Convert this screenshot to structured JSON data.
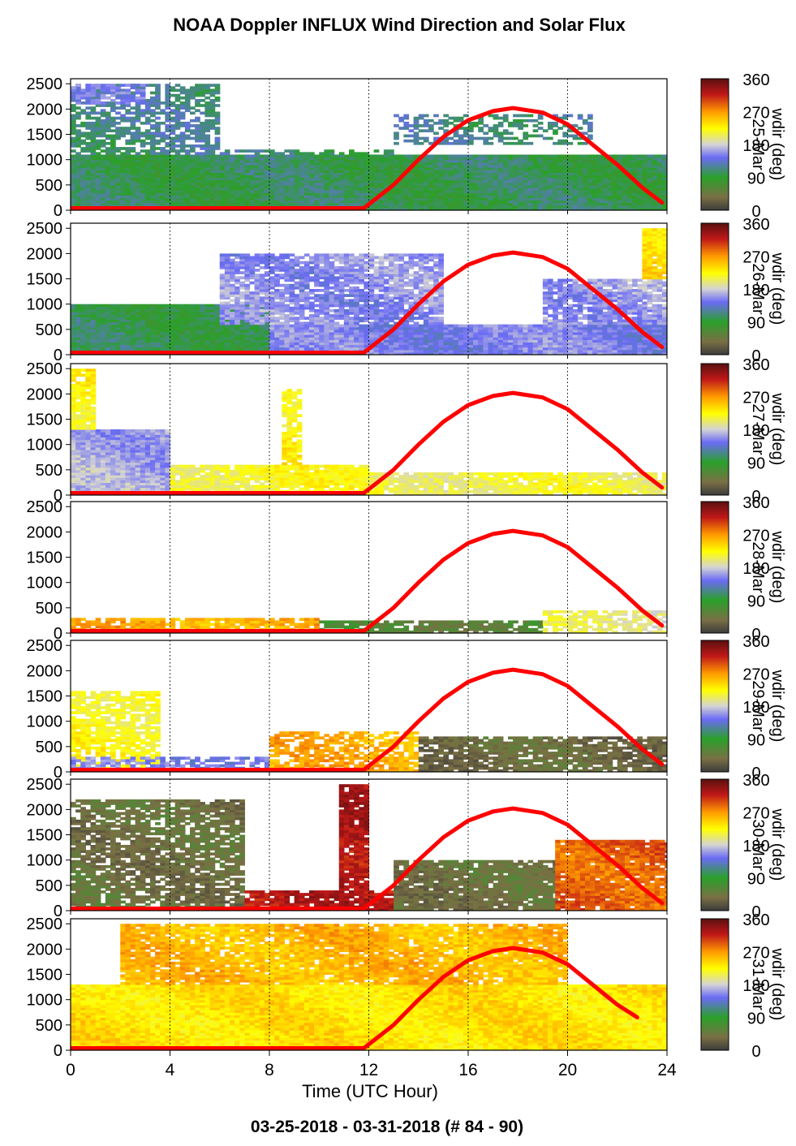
{
  "title": "NOAA Doppler INFLUX Wind Direction and Solar Flux",
  "footer": "03-25-2018 - 03-31-2018   (# 84 - 90)",
  "colors": {
    "solar_curve": "#ff0000",
    "colormap_stops": [
      "#3c3c3c",
      "#7a6f44",
      "#2aa02a",
      "#6b6bf5",
      "#d4d4d4",
      "#ffff00",
      "#ff9900",
      "#c01818",
      "#5a1010"
    ],
    "colormap_positions": [
      0,
      0.1,
      0.25,
      0.4,
      0.5,
      0.62,
      0.75,
      0.88,
      1.0
    ]
  },
  "chart_data": {
    "type": "heatmap",
    "xlabel": "Time (UTC Hour)",
    "x_ticks": [
      "0",
      "4",
      "8",
      "12",
      "16",
      "20",
      "24"
    ],
    "xlim": [
      0,
      24
    ],
    "y_ticks": [
      "0",
      "500",
      "1000",
      "1500",
      "2000",
      "2500"
    ],
    "ylim": [
      0,
      2600
    ],
    "grid": "vertical dotted lines at 4, 8, 12, 16, 20, 24",
    "colorbar": {
      "label": "wdir (deg)",
      "ticks": [
        "0",
        "90",
        "180",
        "270",
        "360"
      ],
      "range": [
        0,
        360
      ]
    },
    "solar_flux_curve": {
      "x": [
        0,
        11.8,
        13,
        14,
        15,
        16,
        17,
        17.8,
        19,
        20,
        21,
        22,
        23,
        23.8
      ],
      "y": [
        40,
        40,
        500,
        1000,
        1450,
        1780,
        1960,
        2020,
        1930,
        1700,
        1300,
        900,
        450,
        150
      ]
    },
    "panels": [
      {
        "date_label": "25-Mar",
        "regions": [
          {
            "x": [
              0,
              24
            ],
            "z": [
              0,
              1100
            ],
            "wdir": 100,
            "coverage": 1.0
          },
          {
            "x": [
              0,
              6
            ],
            "z": [
              1100,
              2500
            ],
            "wdir": 115,
            "coverage": 0.65
          },
          {
            "x": [
              6,
              13
            ],
            "z": [
              1000,
              1200
            ],
            "wdir": 110,
            "coverage": 0.55
          },
          {
            "x": [
              13,
              21
            ],
            "z": [
              1300,
              1900
            ],
            "wdir": 115,
            "coverage": 0.5
          },
          {
            "x": [
              0,
              3
            ],
            "z": [
              2100,
              2500
            ],
            "wdir": 140,
            "coverage": 0.7
          }
        ],
        "solar_end_y": 150
      },
      {
        "date_label": "26-Mar",
        "regions": [
          {
            "x": [
              0,
              8
            ],
            "z": [
              0,
              1000
            ],
            "wdir": 100,
            "coverage": 1.0
          },
          {
            "x": [
              8,
              24
            ],
            "z": [
              0,
              600
            ],
            "wdir": 150,
            "coverage": 1.0
          },
          {
            "x": [
              6,
              15
            ],
            "z": [
              600,
              2000
            ],
            "wdir": 155,
            "coverage": 0.85
          },
          {
            "x": [
              19,
              24
            ],
            "z": [
              600,
              1500
            ],
            "wdir": 160,
            "coverage": 0.85
          },
          {
            "x": [
              23,
              24
            ],
            "z": [
              1500,
              2500
            ],
            "wdir": 240,
            "coverage": 0.9
          }
        ],
        "solar_end_y": 150
      },
      {
        "date_label": "27-Mar",
        "regions": [
          {
            "x": [
              0,
              4
            ],
            "z": [
              0,
              1300
            ],
            "wdir": 165,
            "coverage": 1.0
          },
          {
            "x": [
              0,
              1
            ],
            "z": [
              1300,
              2500
            ],
            "wdir": 225,
            "coverage": 0.9
          },
          {
            "x": [
              4,
              12
            ],
            "z": [
              0,
              600
            ],
            "wdir": 215,
            "coverage": 0.9
          },
          {
            "x": [
              12,
              24
            ],
            "z": [
              0,
              450
            ],
            "wdir": 210,
            "coverage": 0.9
          },
          {
            "x": [
              8.5,
              9.2
            ],
            "z": [
              600,
              2100
            ],
            "wdir": 225,
            "coverage": 0.8
          }
        ],
        "solar_end_y": 150
      },
      {
        "date_label": "28-Mar",
        "regions": [
          {
            "x": [
              0,
              10
            ],
            "z": [
              0,
              300
            ],
            "wdir": 260,
            "coverage": 0.8
          },
          {
            "x": [
              10,
              19
            ],
            "z": [
              0,
              250
            ],
            "wdir": 60,
            "coverage": 0.8
          },
          {
            "x": [
              19,
              24
            ],
            "z": [
              0,
              450
            ],
            "wdir": 200,
            "coverage": 0.7
          }
        ],
        "solar_end_y": 150
      },
      {
        "date_label": "29-Mar",
        "regions": [
          {
            "x": [
              0,
              3.5
            ],
            "z": [
              0,
              1600
            ],
            "wdir": 220,
            "coverage": 0.75
          },
          {
            "x": [
              0,
              8
            ],
            "z": [
              0,
              300
            ],
            "wdir": 150,
            "coverage": 0.6
          },
          {
            "x": [
              8,
              14
            ],
            "z": [
              0,
              800
            ],
            "wdir": 260,
            "coverage": 0.7
          },
          {
            "x": [
              14,
              24
            ],
            "z": [
              0,
              700
            ],
            "wdir": 35,
            "coverage": 0.85
          }
        ],
        "solar_end_y": 150
      },
      {
        "date_label": "30-Mar",
        "regions": [
          {
            "x": [
              0,
              7
            ],
            "z": [
              0,
              2200
            ],
            "wdir": 40,
            "coverage": 0.8
          },
          {
            "x": [
              7,
              13
            ],
            "z": [
              0,
              400
            ],
            "wdir": 320,
            "coverage": 0.9
          },
          {
            "x": [
              10.8,
              12
            ],
            "z": [
              400,
              2500
            ],
            "wdir": 325,
            "coverage": 0.9
          },
          {
            "x": [
              13,
              19.5
            ],
            "z": [
              0,
              1000
            ],
            "wdir": 40,
            "coverage": 0.9
          },
          {
            "x": [
              19.5,
              24
            ],
            "z": [
              0,
              1400
            ],
            "wdir": 290,
            "coverage": 0.95
          }
        ],
        "solar_end_y": 150
      },
      {
        "date_label": "31-Mar",
        "regions": [
          {
            "x": [
              0,
              24
            ],
            "z": [
              0,
              1300
            ],
            "wdir": 235,
            "coverage": 1.0
          },
          {
            "x": [
              2,
              20
            ],
            "z": [
              1300,
              2500
            ],
            "wdir": 255,
            "coverage": 0.9
          }
        ],
        "solar_end_y": 650,
        "solar_end_x": 22.8
      }
    ]
  }
}
